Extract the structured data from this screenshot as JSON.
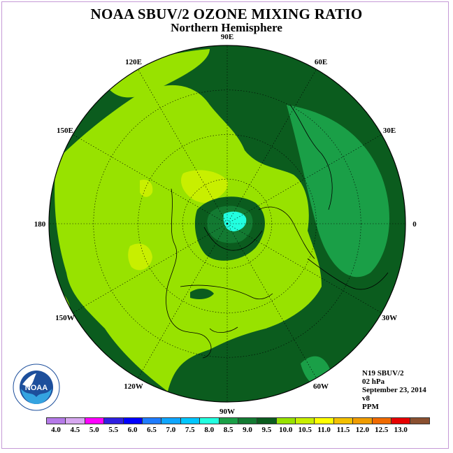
{
  "title": "NOAA SBUV/2 OZONE MIXING RATIO",
  "subtitle": "Northern Hemisphere",
  "longitude_labels": [
    {
      "text": "90E",
      "lon": 90
    },
    {
      "text": "60E",
      "lon": 60
    },
    {
      "text": "30E",
      "lon": 30
    },
    {
      "text": "0",
      "lon": 0
    },
    {
      "text": "30W",
      "lon": -30
    },
    {
      "text": "60W",
      "lon": -60
    },
    {
      "text": "90W",
      "lon": -90
    },
    {
      "text": "120W",
      "lon": -120
    },
    {
      "text": "150W",
      "lon": -150
    },
    {
      "text": "180",
      "lon": 180
    },
    {
      "text": "150E",
      "lon": 150
    },
    {
      "text": "120E",
      "lon": 120
    }
  ],
  "info": {
    "instrument": "N19 SBUV/2",
    "level": "02 hPa",
    "date": "September 23, 2014",
    "version": "v8",
    "units": "PPM"
  },
  "colorbar": {
    "ticks": [
      "4.0",
      "4.5",
      "5.0",
      "5.5",
      "6.0",
      "6.5",
      "7.0",
      "7.5",
      "8.0",
      "8.5",
      "9.0",
      "9.5",
      "10.0",
      "10.5",
      "11.0",
      "11.5",
      "12.0",
      "12.5",
      "13.0"
    ],
    "colors": [
      "#b57ae8",
      "#d7a8f0",
      "#ff00ff",
      "#2f1fe0",
      "#0000ff",
      "#1f7cff",
      "#0fa6ff",
      "#00c6ff",
      "#22ffe0",
      "#1a9f47",
      "#137a32",
      "#0b5c1e",
      "#98e200",
      "#c8ef00",
      "#ffff00",
      "#f3c000",
      "#f09c00",
      "#f06a00",
      "#e60000",
      "#8a5030"
    ]
  },
  "palette": {
    "lvl85": "#137a32",
    "lvl90": "#0b5c1e",
    "lvl95": "#1a9f47",
    "lvl100": "#98e200",
    "lvl105": "#c8ef00",
    "lvl80": "#22ffe0"
  },
  "logo": {
    "text": "NOAA",
    "ring_text": "NATIONAL OCEANIC AND ATMOSPHERIC ADMINISTRATION · U.S. DEPARTMENT OF COMMERCE"
  }
}
